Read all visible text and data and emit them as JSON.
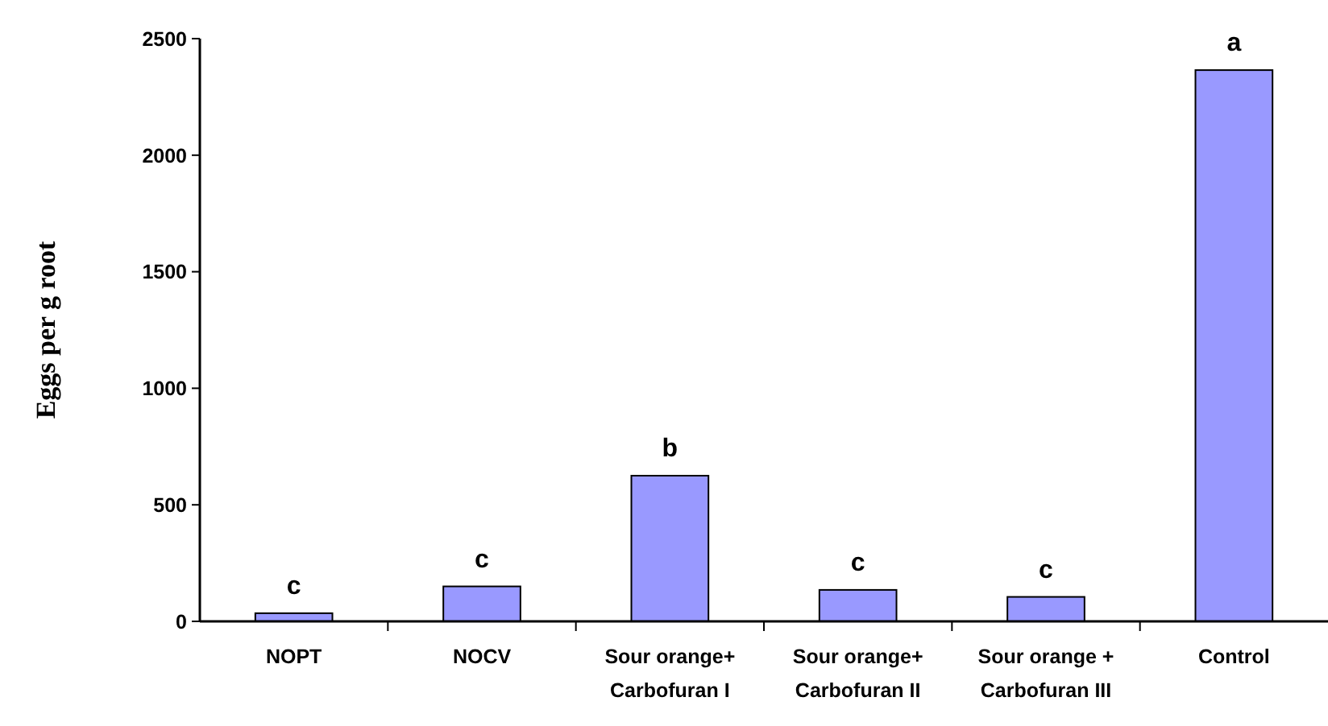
{
  "chart_data": {
    "type": "bar",
    "ylabel": "Eggs per g root",
    "categories": [
      "NOPT",
      "NOCV",
      "Sour orange+\nCarbofuran I",
      "Sour orange+\nCarbofuran II",
      "Sour orange +\nCarbofuran III",
      "Control"
    ],
    "values": [
      35,
      150,
      625,
      135,
      105,
      2365
    ],
    "color": "#9999ff",
    "ylim": [
      0,
      2500
    ],
    "yticks": [
      0,
      500,
      1000,
      1500,
      2000,
      2500
    ],
    "grid": false,
    "annotations": [
      {
        "text": "c",
        "x": "NOPT",
        "y": 35
      },
      {
        "text": "c",
        "x": "NOCV",
        "y": 150
      },
      {
        "text": "b",
        "x": "Sour orange+\nCarbofuran I",
        "y": 625
      },
      {
        "text": "c",
        "x": "Sour orange+\nCarbofuran II",
        "y": 135
      },
      {
        "text": "c",
        "x": "Sour orange +\nCarbofuran III",
        "y": 105
      },
      {
        "text": "a",
        "x": "Control",
        "y": 2365
      }
    ]
  }
}
